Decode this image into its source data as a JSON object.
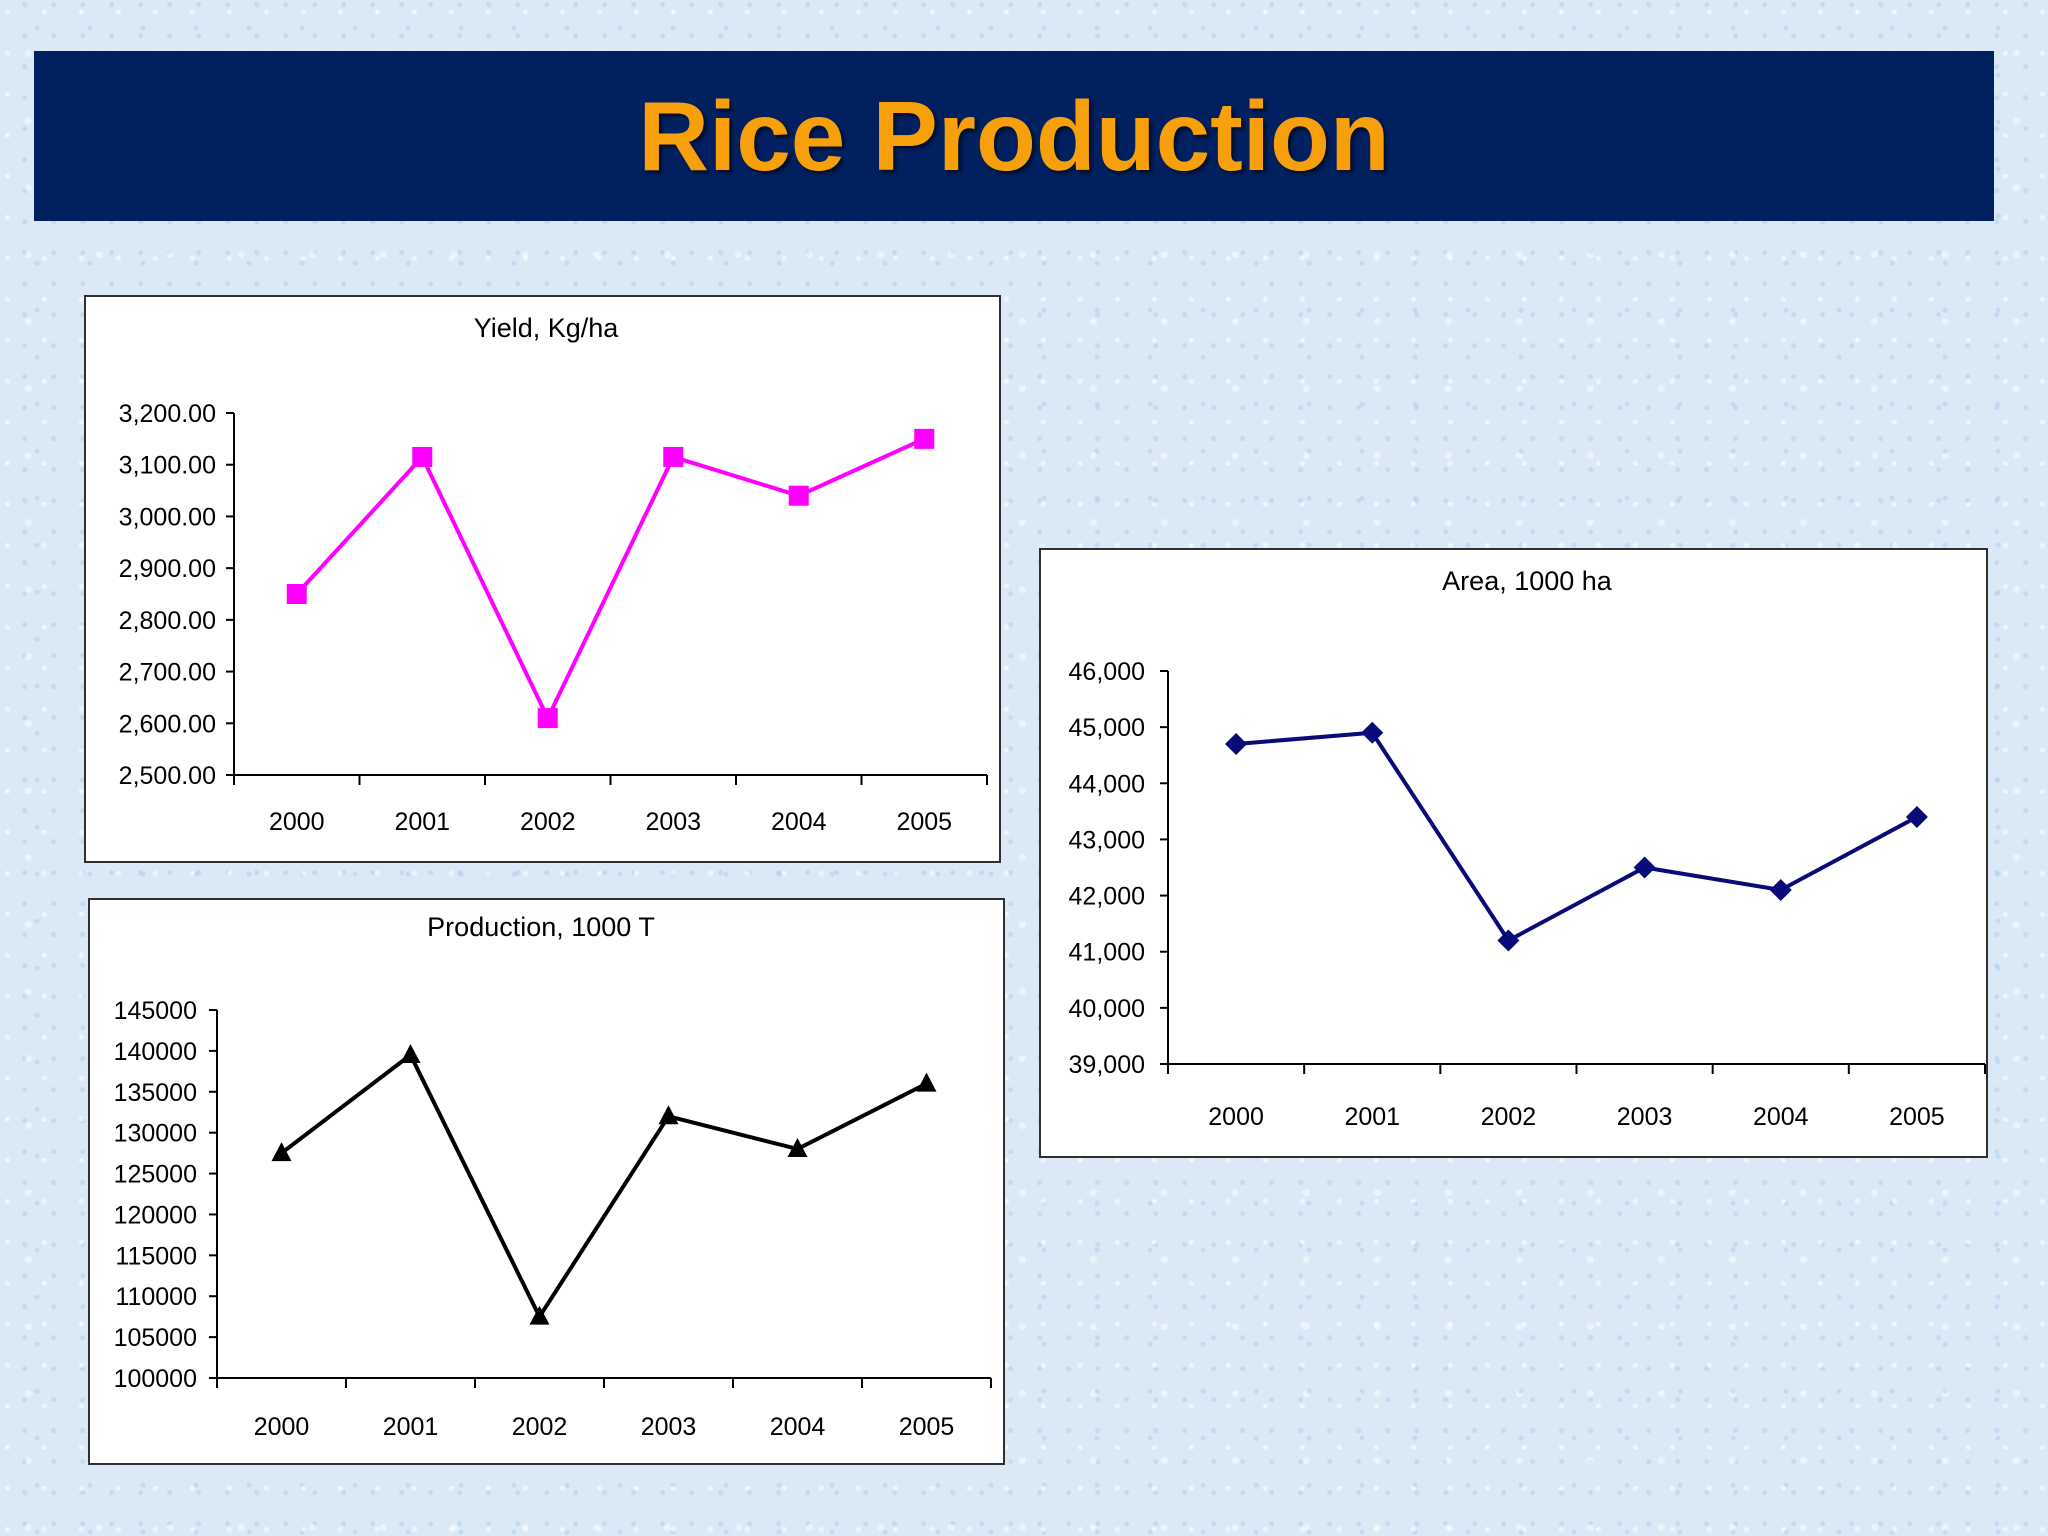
{
  "slide": {
    "title": "Rice Production"
  },
  "chart_data": [
    {
      "id": "yield",
      "type": "line",
      "title": "Yield, Kg/ha",
      "categories": [
        "2000",
        "2001",
        "2002",
        "2003",
        "2004",
        "2005"
      ],
      "series": [
        {
          "values": [
            2850,
            3115,
            2610,
            3115,
            3040,
            3150
          ]
        }
      ],
      "ylim": [
        2500,
        3200
      ],
      "ytick_step": 100,
      "ytick_labels": [
        "2,500.00",
        "2,600.00",
        "2,700.00",
        "2,800.00",
        "2,900.00",
        "3,000.00",
        "3,100.00",
        "3,200.00"
      ],
      "marker": "square",
      "color": "#ff00ff",
      "grid": false,
      "legend": "none"
    },
    {
      "id": "area",
      "type": "line",
      "title": "Area, 1000 ha",
      "categories": [
        "2000",
        "2001",
        "2002",
        "2003",
        "2004",
        "2005"
      ],
      "series": [
        {
          "values": [
            44700,
            44900,
            41200,
            42500,
            42100,
            43400
          ]
        }
      ],
      "ylim": [
        39000,
        46000
      ],
      "ytick_step": 1000,
      "ytick_labels": [
        "39,000",
        "40,000",
        "41,000",
        "42,000",
        "43,000",
        "44,000",
        "45,000",
        "46,000"
      ],
      "marker": "diamond",
      "color": "#0a0a78",
      "grid": false,
      "legend": "none"
    },
    {
      "id": "production",
      "type": "line",
      "title": "Production, 1000 T",
      "categories": [
        "2000",
        "2001",
        "2002",
        "2003",
        "2004",
        "2005"
      ],
      "series": [
        {
          "values": [
            127500,
            139500,
            107500,
            132000,
            128000,
            136000
          ]
        }
      ],
      "ylim": [
        100000,
        145000
      ],
      "ytick_step": 5000,
      "ytick_labels": [
        "100000",
        "105000",
        "110000",
        "115000",
        "120000",
        "125000",
        "130000",
        "135000",
        "140000",
        "145000"
      ],
      "marker": "triangle",
      "color": "#000000",
      "grid": false,
      "legend": "none"
    }
  ]
}
